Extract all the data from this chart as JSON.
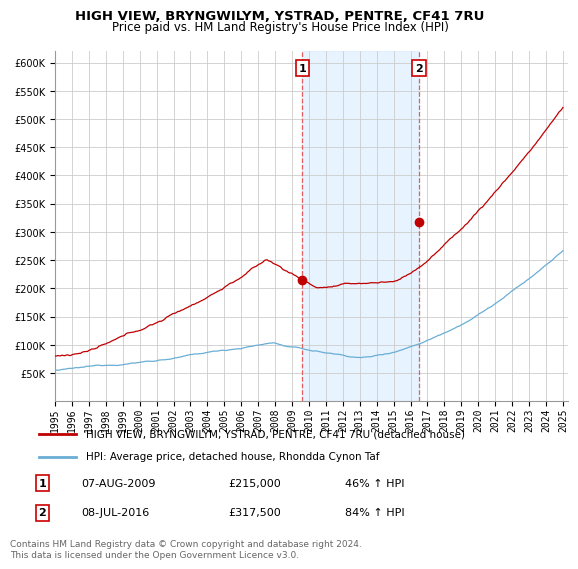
{
  "title": "HIGH VIEW, BRYNGWILYM, YSTRAD, PENTRE, CF41 7RU",
  "subtitle": "Price paid vs. HM Land Registry's House Price Index (HPI)",
  "legend_line1": "HIGH VIEW, BRYNGWILYM, YSTRAD, PENTRE, CF41 7RU (detached house)",
  "legend_line2": "HPI: Average price, detached house, Rhondda Cynon Taf",
  "annotation1_label": "1",
  "annotation1_date": "07-AUG-2009",
  "annotation1_price": "£215,000",
  "annotation1_hpi": "46% ↑ HPI",
  "annotation2_label": "2",
  "annotation2_date": "08-JUL-2016",
  "annotation2_price": "£317,500",
  "annotation2_hpi": "84% ↑ HPI",
  "footer": "Contains HM Land Registry data © Crown copyright and database right 2024.\nThis data is licensed under the Open Government Licence v3.0.",
  "hpi_color": "#6aaed6",
  "price_color": "#c00000",
  "marker_color": "#c00000",
  "vline_color": "#e06060",
  "span_color": "#ddeeff",
  "ylim": [
    0,
    620000
  ],
  "ytick_start": 50000,
  "ytick_step": 50000,
  "ytick_max": 600000,
  "year_start": 1995,
  "year_end": 2025,
  "purchase1_year": 2009.6,
  "purchase1_value": 215000,
  "purchase2_year": 2016.5,
  "purchase2_value": 317500,
  "title_fontsize": 9.5,
  "subtitle_fontsize": 8.5,
  "tick_fontsize": 7,
  "legend_fontsize": 7.5,
  "ann_fontsize": 8,
  "footer_fontsize": 6.5
}
